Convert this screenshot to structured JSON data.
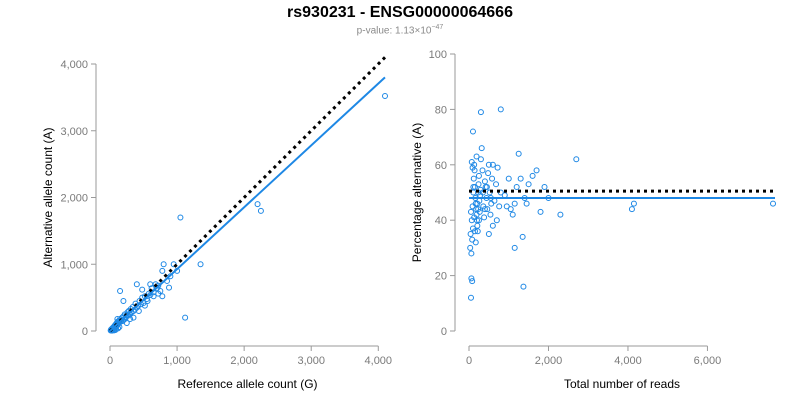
{
  "header": {
    "title": "rs930231 - ENSG00000064666",
    "pvalue_text": "p-value: 1.13×10",
    "pvalue_exp": "−47"
  },
  "colors": {
    "points": "#1e88e5",
    "fit": "#1e88e5",
    "reference": "#000000",
    "axis": "#9a9a9a"
  },
  "chart_data": [
    {
      "type": "scatter",
      "xlabel": "Reference allele count (G)",
      "ylabel": "Alternative allele count (A)",
      "xlim": [
        0,
        4100
      ],
      "ylim": [
        0,
        4000
      ],
      "xticks": [
        "0",
        "1,000",
        "2,000",
        "3,000",
        "4,000"
      ],
      "yticks": [
        "0",
        "1,000",
        "2,000",
        "3,000",
        "4,000"
      ],
      "xtick_values": [
        0,
        1000,
        2000,
        3000,
        4000
      ],
      "ytick_values": [
        0,
        1000,
        2000,
        3000,
        4000
      ],
      "fit_line": [
        [
          0,
          0
        ],
        [
          4100,
          3800
        ]
      ],
      "reference_line": [
        [
          0,
          0
        ],
        [
          4100,
          4100
        ]
      ],
      "points": [
        [
          10,
          8
        ],
        [
          15,
          20
        ],
        [
          20,
          12
        ],
        [
          25,
          30
        ],
        [
          30,
          18
        ],
        [
          35,
          40
        ],
        [
          40,
          25
        ],
        [
          45,
          50
        ],
        [
          50,
          35
        ],
        [
          55,
          60
        ],
        [
          60,
          45
        ],
        [
          65,
          30
        ],
        [
          70,
          80
        ],
        [
          75,
          55
        ],
        [
          80,
          65
        ],
        [
          85,
          100
        ],
        [
          90,
          70
        ],
        [
          95,
          90
        ],
        [
          100,
          120
        ],
        [
          105,
          85
        ],
        [
          110,
          95
        ],
        [
          115,
          140
        ],
        [
          120,
          100
        ],
        [
          125,
          110
        ],
        [
          130,
          150
        ],
        [
          135,
          120
        ],
        [
          140,
          130
        ],
        [
          150,
          180
        ],
        [
          160,
          140
        ],
        [
          170,
          160
        ],
        [
          180,
          200
        ],
        [
          190,
          150
        ],
        [
          200,
          220
        ],
        [
          210,
          170
        ],
        [
          220,
          250
        ],
        [
          230,
          200
        ],
        [
          240,
          210
        ],
        [
          250,
          240
        ],
        [
          260,
          280
        ],
        [
          270,
          230
        ],
        [
          280,
          300
        ],
        [
          290,
          260
        ],
        [
          300,
          250
        ],
        [
          310,
          330
        ],
        [
          320,
          280
        ],
        [
          340,
          360
        ],
        [
          350,
          300
        ],
        [
          370,
          320
        ],
        [
          380,
          410
        ],
        [
          400,
          350
        ],
        [
          420,
          380
        ],
        [
          440,
          450
        ],
        [
          460,
          400
        ],
        [
          480,
          500
        ],
        [
          500,
          420
        ],
        [
          520,
          520
        ],
        [
          550,
          480
        ],
        [
          580,
          560
        ],
        [
          600,
          540
        ],
        [
          620,
          640
        ],
        [
          650,
          580
        ],
        [
          680,
          700
        ],
        [
          700,
          640
        ],
        [
          720,
          680
        ],
        [
          750,
          600
        ],
        [
          780,
          900
        ],
        [
          800,
          1000
        ],
        [
          850,
          750
        ],
        [
          880,
          650
        ],
        [
          900,
          820
        ],
        [
          950,
          1000
        ],
        [
          1000,
          900
        ],
        [
          150,
          600
        ],
        [
          200,
          450
        ],
        [
          400,
          700
        ],
        [
          1050,
          1700
        ],
        [
          1120,
          200
        ],
        [
          1350,
          1000
        ],
        [
          2200,
          1900
        ],
        [
          2250,
          1800
        ],
        [
          4100,
          3520
        ],
        [
          60,
          10
        ],
        [
          80,
          15
        ],
        [
          30,
          5
        ],
        [
          120,
          40
        ],
        [
          90,
          30
        ],
        [
          110,
          180
        ],
        [
          140,
          60
        ],
        [
          250,
          120
        ],
        [
          300,
          180
        ],
        [
          650,
          520
        ],
        [
          720,
          560
        ],
        [
          350,
          200
        ],
        [
          430,
          300
        ],
        [
          520,
          380
        ],
        [
          560,
          450
        ],
        [
          600,
          700
        ],
        [
          480,
          620
        ],
        [
          780,
          520
        ]
      ]
    },
    {
      "type": "scatter",
      "xlabel": "Total number of reads",
      "ylabel": "Percentage alternative (A)",
      "xlim": [
        0,
        7700
      ],
      "ylim": [
        0,
        100
      ],
      "xticks": [
        "0",
        "2,000",
        "4,000",
        "6,000"
      ],
      "yticks": [
        "0",
        "20",
        "40",
        "60",
        "80",
        "100"
      ],
      "xtick_values": [
        0,
        2000,
        4000,
        6000
      ],
      "ytick_values": [
        0,
        20,
        40,
        60,
        80,
        100
      ],
      "fit_line": [
        [
          0,
          48
        ],
        [
          7700,
          48
        ]
      ],
      "reference_line": [
        [
          0,
          50.5
        ],
        [
          7700,
          50.5
        ]
      ],
      "points": [
        [
          50,
          12
        ],
        [
          60,
          19
        ],
        [
          80,
          18
        ],
        [
          100,
          72
        ],
        [
          30,
          30
        ],
        [
          40,
          35
        ],
        [
          70,
          40
        ],
        [
          90,
          45
        ],
        [
          110,
          50
        ],
        [
          120,
          55
        ],
        [
          130,
          60
        ],
        [
          140,
          58
        ],
        [
          150,
          52
        ],
        [
          160,
          48
        ],
        [
          170,
          46
        ],
        [
          180,
          44
        ],
        [
          190,
          42
        ],
        [
          200,
          40
        ],
        [
          210,
          38
        ],
        [
          220,
          36
        ],
        [
          230,
          50
        ],
        [
          240,
          53
        ],
        [
          250,
          56
        ],
        [
          260,
          47
        ],
        [
          270,
          43
        ],
        [
          280,
          49
        ],
        [
          290,
          51
        ],
        [
          300,
          62
        ],
        [
          320,
          66
        ],
        [
          340,
          58
        ],
        [
          360,
          45
        ],
        [
          380,
          41
        ],
        [
          400,
          54
        ],
        [
          420,
          52
        ],
        [
          440,
          48
        ],
        [
          460,
          44
        ],
        [
          480,
          57
        ],
        [
          500,
          60
        ],
        [
          520,
          50
        ],
        [
          540,
          42
        ],
        [
          560,
          46
        ],
        [
          580,
          55
        ],
        [
          600,
          38
        ],
        [
          640,
          47
        ],
        [
          680,
          53
        ],
        [
          720,
          59
        ],
        [
          760,
          45
        ],
        [
          800,
          50
        ],
        [
          300,
          79
        ],
        [
          800,
          80
        ],
        [
          60,
          28
        ],
        [
          80,
          33
        ],
        [
          100,
          37
        ],
        [
          50,
          43
        ],
        [
          70,
          61
        ],
        [
          90,
          59
        ],
        [
          110,
          52
        ],
        [
          130,
          41
        ],
        [
          150,
          36
        ],
        [
          170,
          32
        ],
        [
          190,
          63
        ],
        [
          210,
          46
        ],
        [
          230,
          44
        ],
        [
          250,
          40
        ],
        [
          900,
          49
        ],
        [
          950,
          45
        ],
        [
          1000,
          55
        ],
        [
          1050,
          44
        ],
        [
          1100,
          42
        ],
        [
          1150,
          30
        ],
        [
          1200,
          52
        ],
        [
          1250,
          64
        ],
        [
          1300,
          55
        ],
        [
          1350,
          34
        ],
        [
          1400,
          48
        ],
        [
          1450,
          46
        ],
        [
          1500,
          53
        ],
        [
          1600,
          56
        ],
        [
          1700,
          58
        ],
        [
          1800,
          43
        ],
        [
          1900,
          52
        ],
        [
          2000,
          48
        ],
        [
          2300,
          42
        ],
        [
          2700,
          62
        ],
        [
          4100,
          44
        ],
        [
          4150,
          46
        ],
        [
          7650,
          46
        ],
        [
          1370,
          16
        ],
        [
          1150,
          46
        ],
        [
          700,
          40
        ],
        [
          600,
          60
        ],
        [
          500,
          35
        ],
        [
          400,
          44
        ],
        [
          350,
          50
        ],
        [
          450,
          52
        ],
        [
          550,
          48
        ]
      ]
    }
  ]
}
